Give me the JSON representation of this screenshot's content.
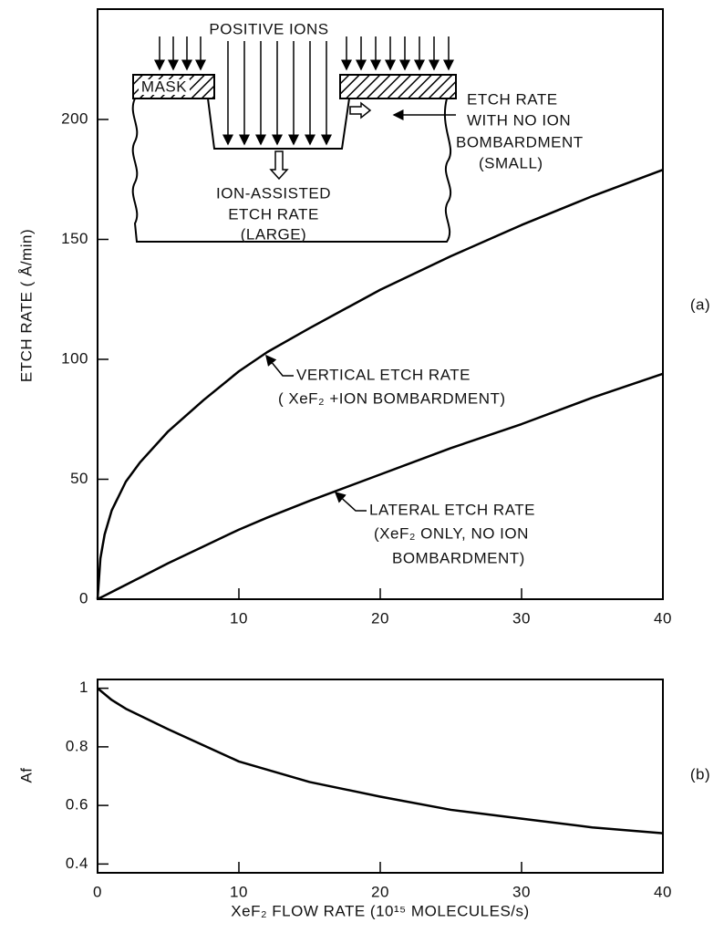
{
  "chart_data": [
    {
      "type": "line",
      "panel_label": "(a)",
      "ylabel": "ETCH RATE ( Å/min)",
      "x": [
        0,
        0.2,
        0.5,
        1,
        2,
        3,
        5,
        7.5,
        10,
        12,
        15,
        20,
        25,
        30,
        35,
        40
      ],
      "series": [
        {
          "name": "VERTICAL ETCH RATE",
          "color": "#000000",
          "values": [
            0,
            17,
            27,
            37,
            49,
            57,
            70,
            83,
            95,
            103,
            113,
            129,
            143,
            156,
            168,
            179
          ]
        },
        {
          "name": "LATERAL ETCH RATE",
          "color": "#000000",
          "values": [
            0,
            0.6,
            1.5,
            3,
            6,
            9,
            15,
            22,
            29,
            34,
            41,
            52,
            63,
            73,
            84,
            94
          ]
        }
      ],
      "xlim": [
        0,
        40
      ],
      "ylim": [
        0,
        246
      ],
      "xticks": [
        10,
        20,
        30,
        40
      ],
      "yticks": [
        0,
        50,
        100,
        150,
        200
      ],
      "annotations": [
        "VERTICAL ETCH RATE",
        "( XeF₂ +ION BOMBARDMENT)",
        "LATERAL ETCH RATE",
        "(XeF₂ ONLY, NO ION",
        "BOMBARDMENT)"
      ],
      "inset_labels": [
        "POSITIVE IONS",
        "MASK",
        "ETCH RATE",
        "WITH NO ION",
        "BOMBARDMENT",
        "(SMALL)",
        "ION-ASSISTED",
        "ETCH RATE",
        "(LARGE)"
      ]
    },
    {
      "type": "line",
      "panel_label": "(b)",
      "ylabel": "Af",
      "xlabel": "XeF₂ FLOW RATE (10¹⁵ MOLECULES/s)",
      "x": [
        0,
        1,
        2,
        5,
        10,
        15,
        20,
        25,
        30,
        35,
        40
      ],
      "series": [
        {
          "color": "#000000",
          "values": [
            1,
            0.96,
            0.93,
            0.86,
            0.75,
            0.68,
            0.63,
            0.585,
            0.555,
            0.525,
            0.505
          ]
        }
      ],
      "xlim": [
        0,
        40
      ],
      "ylim": [
        0.37,
        1.03
      ],
      "xticks": [
        0,
        10,
        20,
        30,
        40
      ],
      "yticks": [
        0.4,
        0.6,
        0.8,
        1
      ]
    }
  ]
}
